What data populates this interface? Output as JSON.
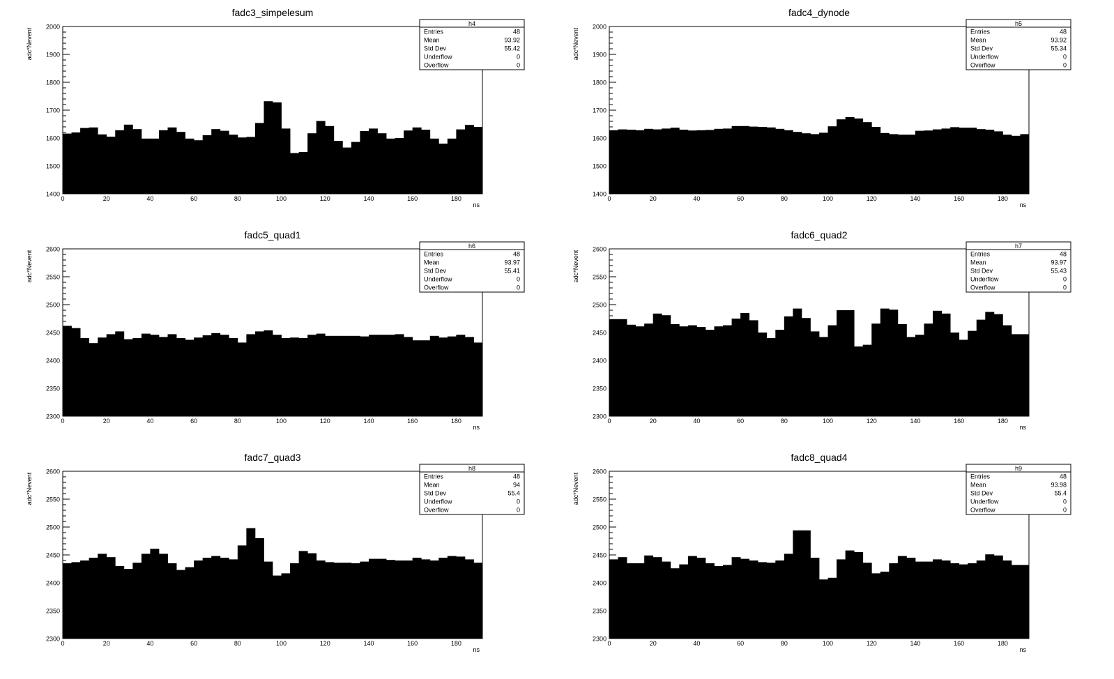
{
  "chart_data": [
    {
      "type": "histogram",
      "title": "fadc3_simpelesum",
      "xlabel": "ns",
      "ylabel": "adc*Nevent",
      "xlim": [
        0,
        192
      ],
      "ylim": [
        1400,
        2000
      ],
      "bin_width": 4,
      "x_ticks": [
        0,
        20,
        40,
        60,
        80,
        100,
        120,
        140,
        160,
        180
      ],
      "y_ticks": [
        1400,
        1500,
        1600,
        1700,
        1800,
        1900,
        2000
      ],
      "values": [
        1616,
        1620,
        1636,
        1638,
        1613,
        1605,
        1628,
        1648,
        1632,
        1598,
        1598,
        1628,
        1638,
        1622,
        1598,
        1592,
        1610,
        1632,
        1626,
        1612,
        1602,
        1604,
        1654,
        1732,
        1728,
        1634,
        1546,
        1550,
        1617,
        1661,
        1643,
        1590,
        1566,
        1586,
        1625,
        1634,
        1617,
        1598,
        1600,
        1627,
        1638,
        1630,
        1598,
        1580,
        1598,
        1631,
        1647,
        1640
      ],
      "stats": {
        "name": "h4",
        "rows": [
          {
            "label": "Entries",
            "value": "48"
          },
          {
            "label": "Mean",
            "value": "93.92"
          },
          {
            "label": "Std Dev",
            "value": "55.42"
          },
          {
            "label": "Underflow",
            "value": "0"
          },
          {
            "label": "Overflow",
            "value": "0"
          }
        ]
      }
    },
    {
      "type": "histogram",
      "title": "fadc4_dynode",
      "xlabel": "ns",
      "ylabel": "adc*Nevent",
      "xlim": [
        0,
        192
      ],
      "ylim": [
        1400,
        2000
      ],
      "bin_width": 4,
      "x_ticks": [
        0,
        20,
        40,
        60,
        80,
        100,
        120,
        140,
        160,
        180
      ],
      "y_ticks": [
        1400,
        1500,
        1600,
        1700,
        1800,
        1900,
        2000
      ],
      "values": [
        1628,
        1631,
        1630,
        1628,
        1633,
        1631,
        1634,
        1637,
        1630,
        1627,
        1628,
        1629,
        1633,
        1634,
        1643,
        1643,
        1641,
        1640,
        1638,
        1633,
        1628,
        1622,
        1617,
        1614,
        1619,
        1642,
        1667,
        1675,
        1670,
        1657,
        1640,
        1618,
        1614,
        1612,
        1612,
        1626,
        1627,
        1631,
        1634,
        1639,
        1637,
        1637,
        1632,
        1630,
        1624,
        1612,
        1608,
        1614
      ],
      "stats": {
        "name": "h5",
        "rows": [
          {
            "label": "Entries",
            "value": "48"
          },
          {
            "label": "Mean",
            "value": "93.92"
          },
          {
            "label": "Std Dev",
            "value": "55.34"
          },
          {
            "label": "Underflow",
            "value": "0"
          },
          {
            "label": "Overflow",
            "value": "0"
          }
        ]
      }
    },
    {
      "type": "histogram",
      "title": "fadc5_quad1",
      "xlabel": "ns",
      "ylabel": "adc*Nevent",
      "xlim": [
        0,
        192
      ],
      "ylim": [
        2300,
        2600
      ],
      "bin_width": 4,
      "x_ticks": [
        0,
        20,
        40,
        60,
        80,
        100,
        120,
        140,
        160,
        180
      ],
      "y_ticks": [
        2300,
        2350,
        2400,
        2450,
        2500,
        2550,
        2600
      ],
      "values": [
        2462,
        2458,
        2440,
        2431,
        2441,
        2447,
        2452,
        2438,
        2440,
        2448,
        2446,
        2442,
        2447,
        2440,
        2437,
        2441,
        2445,
        2449,
        2446,
        2440,
        2432,
        2447,
        2452,
        2454,
        2446,
        2440,
        2441,
        2440,
        2446,
        2448,
        2444,
        2444,
        2444,
        2444,
        2443,
        2446,
        2446,
        2446,
        2447,
        2442,
        2436,
        2436,
        2444,
        2441,
        2443,
        2446,
        2442,
        2432
      ],
      "stats": {
        "name": "h6",
        "rows": [
          {
            "label": "Entries",
            "value": "48"
          },
          {
            "label": "Mean",
            "value": "93.97"
          },
          {
            "label": "Std Dev",
            "value": "55.41"
          },
          {
            "label": "Underflow",
            "value": "0"
          },
          {
            "label": "Overflow",
            "value": "0"
          }
        ]
      }
    },
    {
      "type": "histogram",
      "title": "fadc6_quad2",
      "xlabel": "ns",
      "ylabel": "adc*Nevent",
      "xlim": [
        0,
        192
      ],
      "ylim": [
        2300,
        2600
      ],
      "bin_width": 4,
      "x_ticks": [
        0,
        20,
        40,
        60,
        80,
        100,
        120,
        140,
        160,
        180
      ],
      "y_ticks": [
        2300,
        2350,
        2400,
        2450,
        2500,
        2550,
        2600
      ],
      "values": [
        2474,
        2474,
        2464,
        2461,
        2466,
        2484,
        2481,
        2465,
        2461,
        2463,
        2460,
        2455,
        2461,
        2463,
        2475,
        2485,
        2472,
        2450,
        2440,
        2455,
        2479,
        2493,
        2476,
        2452,
        2442,
        2463,
        2490,
        2490,
        2425,
        2428,
        2466,
        2493,
        2491,
        2465,
        2442,
        2446,
        2466,
        2489,
        2484,
        2450,
        2437,
        2453,
        2473,
        2487,
        2483,
        2463,
        2447,
        2447
      ],
      "stats": {
        "name": "h7",
        "rows": [
          {
            "label": "Entries",
            "value": "48"
          },
          {
            "label": "Mean",
            "value": "93.97"
          },
          {
            "label": "Std Dev",
            "value": "55.43"
          },
          {
            "label": "Underflow",
            "value": "0"
          },
          {
            "label": "Overflow",
            "value": "0"
          }
        ]
      }
    },
    {
      "type": "histogram",
      "title": "fadc7_quad3",
      "xlabel": "ns",
      "ylabel": "adc*Nevent",
      "xlim": [
        0,
        192
      ],
      "ylim": [
        2300,
        2600
      ],
      "bin_width": 4,
      "x_ticks": [
        0,
        20,
        40,
        60,
        80,
        100,
        120,
        140,
        160,
        180
      ],
      "y_ticks": [
        2300,
        2350,
        2400,
        2450,
        2500,
        2550,
        2600
      ],
      "values": [
        2435,
        2437,
        2440,
        2445,
        2452,
        2446,
        2430,
        2425,
        2436,
        2452,
        2461,
        2452,
        2435,
        2423,
        2428,
        2440,
        2445,
        2448,
        2445,
        2442,
        2467,
        2498,
        2480,
        2438,
        2413,
        2417,
        2435,
        2457,
        2453,
        2440,
        2437,
        2436,
        2436,
        2435,
        2438,
        2443,
        2443,
        2441,
        2440,
        2440,
        2445,
        2442,
        2440,
        2445,
        2448,
        2447,
        2442,
        2436
      ],
      "stats": {
        "name": "h8",
        "rows": [
          {
            "label": "Entries",
            "value": "48"
          },
          {
            "label": "Mean",
            "value": "94"
          },
          {
            "label": "Std Dev",
            "value": "55.4"
          },
          {
            "label": "Underflow",
            "value": "0"
          },
          {
            "label": "Overflow",
            "value": "0"
          }
        ]
      }
    },
    {
      "type": "histogram",
      "title": "fadc8_quad4",
      "xlabel": "ns",
      "ylabel": "adc*Nevent",
      "xlim": [
        0,
        192
      ],
      "ylim": [
        2300,
        2600
      ],
      "bin_width": 4,
      "x_ticks": [
        0,
        20,
        40,
        60,
        80,
        100,
        120,
        140,
        160,
        180
      ],
      "y_ticks": [
        2300,
        2350,
        2400,
        2450,
        2500,
        2550,
        2600
      ],
      "values": [
        2442,
        2446,
        2435,
        2435,
        2449,
        2446,
        2438,
        2426,
        2433,
        2448,
        2445,
        2435,
        2430,
        2432,
        2446,
        2443,
        2440,
        2437,
        2436,
        2440,
        2452,
        2494,
        2494,
        2445,
        2406,
        2409,
        2442,
        2458,
        2455,
        2436,
        2417,
        2420,
        2435,
        2448,
        2445,
        2438,
        2438,
        2442,
        2440,
        2435,
        2433,
        2435,
        2440,
        2451,
        2449,
        2440,
        2432,
        2432
      ],
      "stats": {
        "name": "h9",
        "rows": [
          {
            "label": "Entries",
            "value": "48"
          },
          {
            "label": "Mean",
            "value": "93.98"
          },
          {
            "label": "Std Dev",
            "value": "55.4"
          },
          {
            "label": "Underflow",
            "value": "0"
          },
          {
            "label": "Overflow",
            "value": "0"
          }
        ]
      }
    }
  ]
}
